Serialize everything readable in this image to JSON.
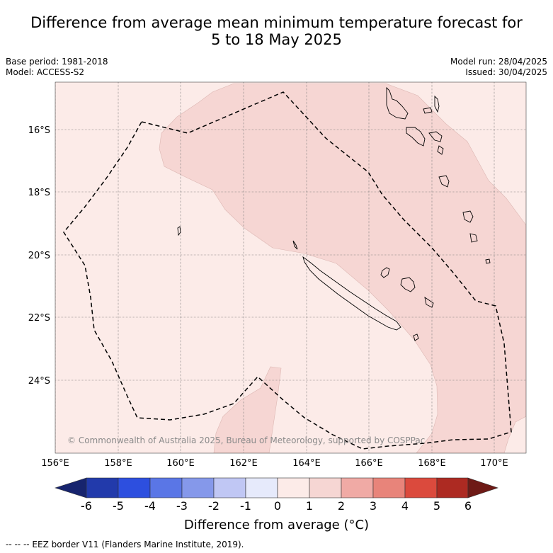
{
  "header": {
    "title_line1": "Difference from average mean minimum temperature forecast for",
    "title_line2": "5 to 18 May 2025",
    "base_period": "Base period: 1981-2018",
    "model": "Model: ACCESS-S2",
    "model_run": "Model run: 28/04/2025",
    "issued": "Issued: 30/04/2025"
  },
  "map": {
    "lat_labels": [
      "16°S",
      "18°S",
      "20°S",
      "22°S",
      "24°S"
    ],
    "lon_labels": [
      "156°E",
      "158°E",
      "160°E",
      "162°E",
      "164°E",
      "166°E",
      "168°E",
      "170°E"
    ],
    "copyright": "© Commonwealth of Australia 2025, Bureau of Meteorology, supported by COSPPac",
    "colors": {
      "band_0_1": "#fcebe8",
      "band_1_2": "#f6d6d3"
    }
  },
  "colorbar": {
    "ticks": [
      "-6",
      "-5",
      "-4",
      "-3",
      "-2",
      "-1",
      "0",
      "1",
      "2",
      "3",
      "4",
      "5",
      "6"
    ],
    "colors": [
      "#223aab",
      "#2d4fdf",
      "#5a76e6",
      "#8598ea",
      "#c0c7f4",
      "#e6eafb",
      "#fcebe8",
      "#f6d6d3",
      "#f0aaa5",
      "#e8847a",
      "#db4a3d",
      "#ad2a22"
    ],
    "under_color": "#17246e",
    "over_color": "#6e1a16",
    "title": "Difference from average (°C)"
  },
  "footer": {
    "eez_note": "--  --  -- EEZ border V11 (Flanders Marine Institute, 2019)."
  }
}
